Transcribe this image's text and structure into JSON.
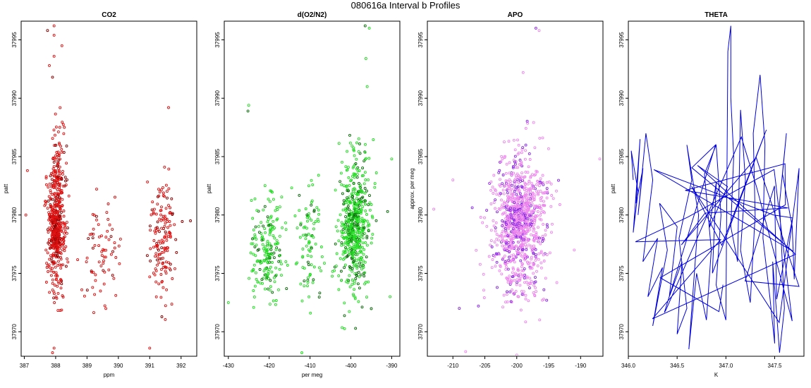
{
  "figure": {
    "title": "080616a   Interval b Profiles"
  },
  "chart_data": [
    {
      "id": "co2",
      "type": "scatter",
      "title": "CO2",
      "xlabel": "ppm",
      "ylabel": "patt",
      "xlim": [
        386.9,
        392.5
      ],
      "ylim": [
        37967.9,
        37996.6
      ],
      "xticks": [
        "387",
        "388",
        "389",
        "390",
        "391",
        "392"
      ],
      "yticks": [
        "37970",
        "37975",
        "37980",
        "37985",
        "37990",
        "37995"
      ],
      "ytick_values": [
        37970,
        37975,
        37980,
        37985,
        37990,
        37995
      ],
      "marker": "open-circle",
      "colors": [
        "#dd1111",
        "#8b0000"
      ],
      "clusters": [
        {
          "x": [
            387.6,
            388.5
          ],
          "y": [
            37969,
            37991
          ],
          "n": 420
        },
        {
          "x": [
            387.8,
            388.2
          ],
          "y": [
            37976,
            37981
          ],
          "n": 140
        },
        {
          "x": [
            388.5,
            390.4
          ],
          "y": [
            37970,
            37984
          ],
          "n": 70
        },
        {
          "x": [
            390.8,
            392.1
          ],
          "y": [
            37970,
            37986
          ],
          "n": 150
        }
      ],
      "points": [
        [
          387.74,
          37995.8
        ],
        [
          387.95,
          37996.2
        ],
        [
          387.95,
          37995.4
        ],
        [
          387.95,
          37993.6
        ],
        [
          388.2,
          37994.5
        ],
        [
          387.9,
          37991.8
        ],
        [
          387.8,
          37992.8
        ],
        [
          391.6,
          37989.2
        ],
        [
          387.1,
          37983.8
        ],
        [
          387.05,
          37980.0
        ],
        [
          392.3,
          37979.5
        ],
        [
          387.9,
          37968.2
        ],
        [
          387.95,
          37968.6
        ],
        [
          391.0,
          37968.6
        ]
      ]
    },
    {
      "id": "o2n2",
      "type": "scatter",
      "title": "d(O2/N2)",
      "xlabel": "per meg",
      "ylabel": "patt",
      "xlim": [
        -431,
        -388
      ],
      "ylim": [
        37967.9,
        37996.6
      ],
      "xticks": [
        "-430",
        "-420",
        "-410",
        "-400",
        "-390"
      ],
      "yticks": [
        "37970",
        "37975",
        "37980",
        "37985",
        "37990",
        "37995"
      ],
      "ytick_values": [
        37970,
        37975,
        37980,
        37985,
        37990,
        37995
      ],
      "marker": "open-circle",
      "colors": [
        "#22dd22",
        "#0a6a0a"
      ],
      "clusters": [
        {
          "x": [
            -426,
            -415
          ],
          "y": [
            37970,
            37984
          ],
          "n": 190
        },
        {
          "x": [
            -415,
            -405
          ],
          "y": [
            37970,
            37985
          ],
          "n": 90
        },
        {
          "x": [
            -405,
            -393
          ],
          "y": [
            37969,
            37990
          ],
          "n": 420
        },
        {
          "x": [
            -403,
            -396
          ],
          "y": [
            37975,
            37982
          ],
          "n": 140
        }
      ],
      "points": [
        [
          -396.5,
          37996.2
        ],
        [
          -395.5,
          37996.0
        ],
        [
          -396.3,
          37993.4
        ],
        [
          -396.0,
          37991.0
        ],
        [
          -425.0,
          37989.4
        ],
        [
          -425.2,
          37988.9
        ],
        [
          -430.0,
          37972.5
        ],
        [
          -412.0,
          37968.2
        ],
        [
          -398.0,
          37967.8
        ],
        [
          -390.0,
          37984.8
        ],
        [
          -391.0,
          37980.3
        ],
        [
          -390.4,
          37973.0
        ]
      ]
    },
    {
      "id": "apo",
      "type": "scatter",
      "title": "APO",
      "xlabel": "",
      "ylabel": "approx. per meg",
      "xlim": [
        -214,
        -186.5
      ],
      "ylim": [
        37967.9,
        37996.6
      ],
      "xticks": [
        "-210",
        "-205",
        "-200",
        "-195",
        "-190"
      ],
      "yticks": [
        "37970",
        "37975",
        "37980",
        "37985",
        "37990",
        "37995"
      ],
      "ytick_values": [
        37970,
        37975,
        37980,
        37985,
        37990,
        37995
      ],
      "marker": "open-circle",
      "colors": [
        "#ee88ee",
        "#8a2be2"
      ],
      "clusters": [
        {
          "x": [
            -206,
            -193
          ],
          "y": [
            37970,
            37989
          ],
          "n": 700
        },
        {
          "x": [
            -203,
            -197
          ],
          "y": [
            37975,
            37984
          ],
          "n": 220
        },
        {
          "x": [
            -210,
            -190
          ],
          "y": [
            37971,
            37987
          ],
          "n": 90
        }
      ],
      "points": [
        [
          -197.0,
          37996.0
        ],
        [
          -196.5,
          37995.8
        ],
        [
          -199.0,
          37992.2
        ],
        [
          -213.0,
          37980.5
        ],
        [
          -210.0,
          37983.0
        ],
        [
          -209.0,
          37972.0
        ],
        [
          -208.0,
          37968.3
        ],
        [
          -200.0,
          37968.0
        ],
        [
          -187.0,
          37984.8
        ],
        [
          -191.0,
          37977.0
        ],
        [
          -206.0,
          37972.2
        ]
      ]
    },
    {
      "id": "theta",
      "type": "line",
      "title": "THETA",
      "xlabel": "K",
      "ylabel": "patt",
      "xlim": [
        346.0,
        347.8
      ],
      "ylim": [
        37967.9,
        37996.6
      ],
      "xticks": [
        "346.0",
        "346.5",
        "347.0",
        "347.5"
      ],
      "xtick_values": [
        346.0,
        346.5,
        347.0,
        347.5
      ],
      "yticks": [
        "37970",
        "37975",
        "37980",
        "37985",
        "37990",
        "37995"
      ],
      "ytick_values": [
        37970,
        37975,
        37980,
        37985,
        37990,
        37995
      ],
      "color": "#0000dd",
      "points": [
        [
          346.05,
          37983
        ],
        [
          346.03,
          37985.5
        ],
        [
          346.1,
          37982
        ],
        [
          346.05,
          37978.5
        ],
        [
          346.12,
          37986.5
        ],
        [
          346.08,
          37981
        ],
        [
          346.15,
          37984
        ],
        [
          346.1,
          37980
        ],
        [
          346.18,
          37987
        ],
        [
          346.25,
          37983
        ],
        [
          346.15,
          37976
        ],
        [
          346.3,
          37978
        ],
        [
          346.2,
          37973
        ],
        [
          346.35,
          37975.5
        ],
        [
          346.25,
          37970.5
        ],
        [
          346.4,
          37977
        ],
        [
          346.32,
          37981
        ],
        [
          346.5,
          37979
        ],
        [
          346.42,
          37973
        ],
        [
          346.55,
          37976
        ],
        [
          346.5,
          37969.8
        ],
        [
          346.6,
          37972
        ],
        [
          346.52,
          37978
        ],
        [
          346.65,
          37983
        ],
        [
          346.6,
          37986
        ],
        [
          346.72,
          37980
        ],
        [
          346.62,
          37968.5
        ],
        [
          346.7,
          37975
        ],
        [
          346.8,
          37971
        ],
        [
          346.85,
          37977
        ],
        [
          346.78,
          37983.5
        ],
        [
          346.9,
          37986
        ],
        [
          346.95,
          37980
        ],
        [
          346.9,
          37974
        ],
        [
          347.0,
          37971
        ],
        [
          347.02,
          37994
        ],
        [
          347.05,
          37996.2
        ],
        [
          347.05,
          37990
        ],
        [
          347.08,
          37985
        ],
        [
          347.05,
          37979
        ],
        [
          347.12,
          37976
        ],
        [
          347.15,
          37989
        ],
        [
          347.2,
          37983
        ],
        [
          347.15,
          37977
        ],
        [
          347.25,
          37972.5
        ],
        [
          347.3,
          37980
        ],
        [
          347.28,
          37987
        ],
        [
          347.35,
          37992
        ],
        [
          347.4,
          37986
        ],
        [
          347.38,
          37978
        ],
        [
          347.45,
          37973
        ],
        [
          347.5,
          37969
        ],
        [
          347.48,
          37976
        ],
        [
          347.55,
          37968.2
        ],
        [
          347.6,
          37972
        ],
        [
          347.55,
          37981
        ],
        [
          347.62,
          37987
        ],
        [
          347.58,
          37983.5
        ],
        [
          347.68,
          37979
        ],
        [
          347.7,
          37974.5
        ],
        [
          347.75,
          37984
        ]
      ],
      "extra_segments": 40
    }
  ]
}
